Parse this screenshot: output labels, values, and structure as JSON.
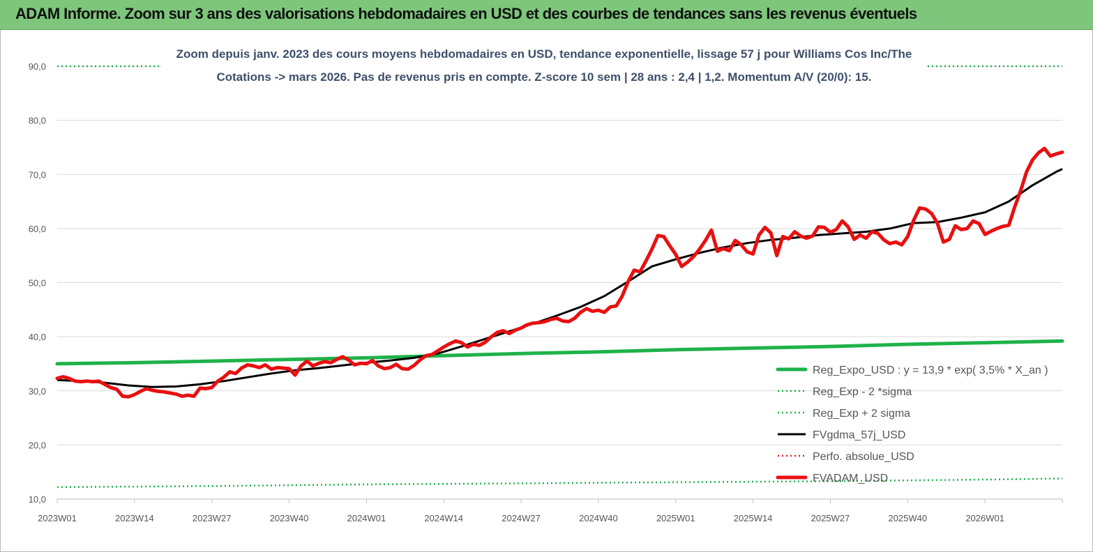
{
  "header": {
    "title": "ADAM Informe. Zoom sur 3 ans des valorisations hebdomadaires en USD et des courbes de tendances sans les revenus éventuels"
  },
  "chart_data": {
    "type": "line",
    "title": "",
    "subtitle_lines": [
      "Zoom depuis janv. 2023 des cours moyens hebdomadaires en USD, tendance exponentielle, lissage 57 j pour Williams Cos Inc/The",
      "Cotations -> mars 2026. Pas de revenus pris en compte. Z-score 10 sem  | 28 ans : 2,4  | 1,2. Momentum A/V (20/0): 15."
    ],
    "xlabel": "",
    "ylabel": "",
    "ylim": [
      10,
      90
    ],
    "yticks": [
      "10,0",
      "20,0",
      "30,0",
      "40,0",
      "50,0",
      "60,0",
      "70,0",
      "80,0",
      "90,0"
    ],
    "x_tick_labels": [
      "2023W01",
      "2023W14",
      "2023W27",
      "2023W40",
      "2024W01",
      "2024W14",
      "2024W27",
      "2024W40",
      "2025W01",
      "2025W14",
      "2025W27",
      "2025W40",
      "2026W01"
    ],
    "grid": "horizontal",
    "legend_position": "bottom-right",
    "colors": {
      "reg_expo": "#1fb24a",
      "sigma": "#1fb24a",
      "fvgdma": "#000000",
      "perfo": "#e02020",
      "fvadam": "#e81010"
    },
    "series": [
      {
        "name": "Reg_Expo_USD : y = 13,9 * exp( 3,5% *  X_an )",
        "style": "solid-thick",
        "values": [
          [
            0,
            35.0
          ],
          [
            13,
            35.2
          ],
          [
            26,
            35.5
          ],
          [
            39,
            35.8
          ],
          [
            52,
            36.1
          ],
          [
            65,
            36.5
          ],
          [
            78,
            36.9
          ],
          [
            91,
            37.2
          ],
          [
            104,
            37.6
          ],
          [
            117,
            37.9
          ],
          [
            130,
            38.2
          ],
          [
            143,
            38.6
          ],
          [
            156,
            38.9
          ],
          [
            169,
            39.2
          ]
        ]
      },
      {
        "name": "Reg_Exp - 2 *sigma",
        "style": "dotted",
        "values": [
          [
            0,
            12.2
          ],
          [
            26,
            12.4
          ],
          [
            52,
            12.7
          ],
          [
            78,
            12.9
          ],
          [
            104,
            13.1
          ],
          [
            130,
            13.3
          ],
          [
            156,
            13.6
          ],
          [
            169,
            13.8
          ]
        ]
      },
      {
        "name": "Reg_Exp + 2 sigma",
        "style": "dotted",
        "values": [
          [
            0,
            90.0
          ],
          [
            169,
            90.0
          ]
        ]
      },
      {
        "name": "FVgdma_57j_USD",
        "style": "solid",
        "values": [
          [
            0,
            32.0
          ],
          [
            4,
            31.8
          ],
          [
            8,
            31.5
          ],
          [
            12,
            31.0
          ],
          [
            16,
            30.7
          ],
          [
            20,
            30.8
          ],
          [
            24,
            31.2
          ],
          [
            28,
            31.8
          ],
          [
            32,
            32.5
          ],
          [
            36,
            33.2
          ],
          [
            40,
            33.8
          ],
          [
            44,
            34.2
          ],
          [
            48,
            34.7
          ],
          [
            52,
            35.2
          ],
          [
            56,
            35.6
          ],
          [
            60,
            36.1
          ],
          [
            64,
            36.9
          ],
          [
            68,
            38.2
          ],
          [
            72,
            39.6
          ],
          [
            76,
            41.0
          ],
          [
            80,
            42.4
          ],
          [
            84,
            43.9
          ],
          [
            88,
            45.5
          ],
          [
            92,
            47.5
          ],
          [
            96,
            50.2
          ],
          [
            100,
            53.0
          ],
          [
            104,
            54.3
          ],
          [
            108,
            55.5
          ],
          [
            112,
            56.5
          ],
          [
            116,
            57.3
          ],
          [
            120,
            57.9
          ],
          [
            124,
            58.3
          ],
          [
            128,
            58.8
          ],
          [
            132,
            59.1
          ],
          [
            136,
            59.4
          ],
          [
            140,
            60.0
          ],
          [
            144,
            61.0
          ],
          [
            148,
            61.2
          ],
          [
            152,
            62.0
          ],
          [
            156,
            63.0
          ],
          [
            160,
            65.0
          ],
          [
            164,
            68.0
          ],
          [
            168,
            70.5
          ],
          [
            169,
            71.0
          ]
        ]
      },
      {
        "name": "Perfo. absolue_USD",
        "style": "dotted",
        "values": []
      },
      {
        "name": "FVADAM_USD",
        "style": "solid-thick",
        "values": [
          [
            0,
            32.3
          ],
          [
            1,
            32.6
          ],
          [
            2,
            32.3
          ],
          [
            3,
            31.8
          ],
          [
            4,
            31.7
          ],
          [
            5,
            31.8
          ],
          [
            6,
            31.7
          ],
          [
            7,
            31.8
          ],
          [
            8,
            31.2
          ],
          [
            9,
            30.6
          ],
          [
            10,
            30.3
          ],
          [
            11,
            29.0
          ],
          [
            12,
            28.9
          ],
          [
            13,
            29.3
          ],
          [
            14,
            29.9
          ],
          [
            15,
            30.4
          ],
          [
            16,
            30.1
          ],
          [
            17,
            29.9
          ],
          [
            18,
            29.8
          ],
          [
            19,
            29.6
          ],
          [
            20,
            29.4
          ],
          [
            21,
            29.0
          ],
          [
            22,
            29.2
          ],
          [
            23,
            29.0
          ],
          [
            24,
            30.5
          ],
          [
            25,
            30.4
          ],
          [
            26,
            30.6
          ],
          [
            27,
            31.8
          ],
          [
            28,
            32.5
          ],
          [
            29,
            33.5
          ],
          [
            30,
            33.2
          ],
          [
            31,
            34.2
          ],
          [
            32,
            34.8
          ],
          [
            33,
            34.6
          ],
          [
            34,
            34.3
          ],
          [
            35,
            34.8
          ],
          [
            36,
            34.0
          ],
          [
            37,
            34.3
          ],
          [
            38,
            34.2
          ],
          [
            39,
            34.1
          ],
          [
            40,
            32.9
          ],
          [
            41,
            34.6
          ],
          [
            42,
            35.5
          ],
          [
            43,
            34.6
          ],
          [
            44,
            35.1
          ],
          [
            45,
            35.4
          ],
          [
            46,
            35.2
          ],
          [
            47,
            35.8
          ],
          [
            48,
            36.3
          ],
          [
            49,
            35.7
          ],
          [
            50,
            34.8
          ],
          [
            51,
            35.1
          ],
          [
            52,
            35.0
          ],
          [
            53,
            35.6
          ],
          [
            54,
            34.6
          ],
          [
            55,
            34.1
          ],
          [
            56,
            34.3
          ],
          [
            57,
            34.9
          ],
          [
            58,
            34.1
          ],
          [
            59,
            34.0
          ],
          [
            60,
            34.7
          ],
          [
            61,
            35.7
          ],
          [
            62,
            36.5
          ],
          [
            63,
            36.7
          ],
          [
            64,
            37.4
          ],
          [
            65,
            38.1
          ],
          [
            66,
            38.7
          ],
          [
            67,
            39.2
          ],
          [
            68,
            38.9
          ],
          [
            69,
            38.1
          ],
          [
            70,
            38.6
          ],
          [
            71,
            38.4
          ],
          [
            72,
            39.0
          ],
          [
            73,
            40.0
          ],
          [
            74,
            40.8
          ],
          [
            75,
            41.1
          ],
          [
            76,
            40.6
          ],
          [
            77,
            41.2
          ],
          [
            78,
            41.6
          ],
          [
            79,
            42.2
          ],
          [
            80,
            42.5
          ],
          [
            81,
            42.6
          ],
          [
            82,
            42.8
          ],
          [
            83,
            43.2
          ],
          [
            84,
            43.4
          ],
          [
            85,
            42.9
          ],
          [
            86,
            42.8
          ],
          [
            87,
            43.4
          ],
          [
            88,
            44.5
          ],
          [
            89,
            45.2
          ],
          [
            90,
            44.7
          ],
          [
            91,
            44.9
          ],
          [
            92,
            44.5
          ],
          [
            93,
            45.5
          ],
          [
            94,
            45.7
          ],
          [
            95,
            47.5
          ],
          [
            96,
            50.2
          ],
          [
            97,
            52.3
          ],
          [
            98,
            52.0
          ],
          [
            99,
            54.0
          ],
          [
            100,
            56.2
          ],
          [
            101,
            58.7
          ],
          [
            102,
            58.5
          ],
          [
            103,
            56.8
          ],
          [
            104,
            55.2
          ],
          [
            105,
            53.0
          ],
          [
            106,
            53.8
          ],
          [
            107,
            54.8
          ],
          [
            108,
            56.2
          ],
          [
            109,
            57.8
          ],
          [
            110,
            59.7
          ],
          [
            111,
            55.8
          ],
          [
            112,
            56.3
          ],
          [
            113,
            55.9
          ],
          [
            114,
            57.8
          ],
          [
            115,
            57.0
          ],
          [
            116,
            55.7
          ],
          [
            117,
            55.3
          ],
          [
            118,
            58.8
          ],
          [
            119,
            60.2
          ],
          [
            120,
            59.2
          ],
          [
            121,
            55.0
          ],
          [
            122,
            58.5
          ],
          [
            123,
            58.1
          ],
          [
            124,
            59.4
          ],
          [
            125,
            58.6
          ],
          [
            126,
            58.2
          ],
          [
            127,
            58.6
          ],
          [
            128,
            60.3
          ],
          [
            129,
            60.2
          ],
          [
            130,
            59.3
          ],
          [
            131,
            59.8
          ],
          [
            132,
            61.4
          ],
          [
            133,
            60.3
          ],
          [
            134,
            58.0
          ],
          [
            135,
            58.8
          ],
          [
            136,
            58.2
          ],
          [
            137,
            59.4
          ],
          [
            138,
            59.1
          ],
          [
            139,
            57.9
          ],
          [
            140,
            57.2
          ],
          [
            141,
            57.5
          ],
          [
            142,
            57.0
          ],
          [
            143,
            58.5
          ],
          [
            144,
            61.5
          ],
          [
            145,
            63.8
          ],
          [
            146,
            63.6
          ],
          [
            147,
            62.8
          ],
          [
            148,
            61.0
          ],
          [
            149,
            57.5
          ],
          [
            150,
            58.0
          ],
          [
            151,
            60.5
          ],
          [
            152,
            59.8
          ],
          [
            153,
            60.0
          ],
          [
            154,
            61.4
          ],
          [
            155,
            60.9
          ],
          [
            156,
            58.9
          ],
          [
            157,
            59.5
          ],
          [
            158,
            60.0
          ],
          [
            159,
            60.4
          ],
          [
            160,
            60.6
          ],
          [
            161,
            64.0
          ],
          [
            162,
            67.0
          ],
          [
            163,
            70.5
          ],
          [
            164,
            72.7
          ],
          [
            165,
            74.0
          ],
          [
            166,
            74.8
          ],
          [
            167,
            73.4
          ],
          [
            168,
            73.8
          ],
          [
            169,
            74.1
          ]
        ]
      }
    ]
  }
}
